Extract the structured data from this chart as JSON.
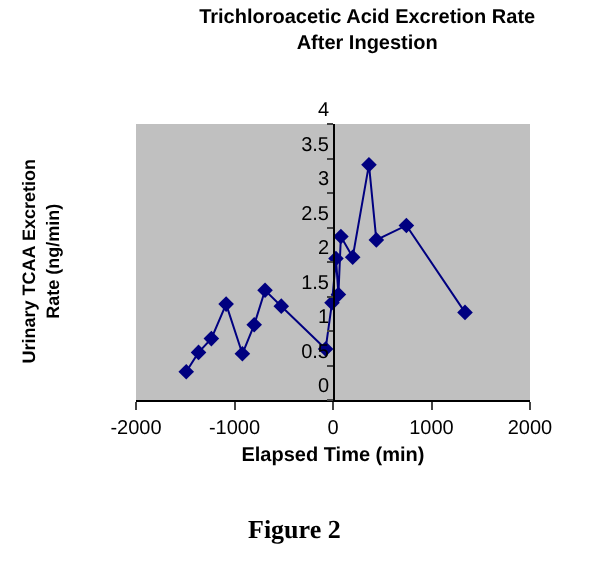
{
  "chart_data": {
    "type": "line",
    "title": "Trichloroacetic Acid Excretion Rate After Ingestion",
    "xlabel": "Elapsed Time (min)",
    "ylabel": "Urinary TCAA Excretion Rate (ng/min)",
    "annotations": [
      "Figure 2"
    ],
    "x": [
      -1490,
      -1365,
      -1235,
      -1085,
      -920,
      -800,
      -690,
      -525,
      -75,
      -10,
      30,
      55,
      80,
      200,
      365,
      440,
      745,
      1340
    ],
    "series": [
      {
        "color": "#000080",
        "values": [
          0.41,
          0.69,
          0.89,
          1.39,
          0.67,
          1.09,
          1.59,
          1.36,
          0.74,
          1.41,
          2.05,
          1.53,
          2.37,
          2.07,
          3.41,
          2.32,
          2.53,
          1.27
        ]
      }
    ],
    "xlim": [
      -2000,
      2000
    ],
    "xticks": [
      -2000,
      -1000,
      0,
      1000,
      2000
    ],
    "ylim": [
      0,
      4
    ],
    "yticks": [
      0,
      0.5,
      1,
      1.5,
      2,
      2.5,
      3,
      3.5,
      4
    ],
    "grid": false,
    "legend": false,
    "marker": "diamond",
    "line_style": "solid"
  }
}
